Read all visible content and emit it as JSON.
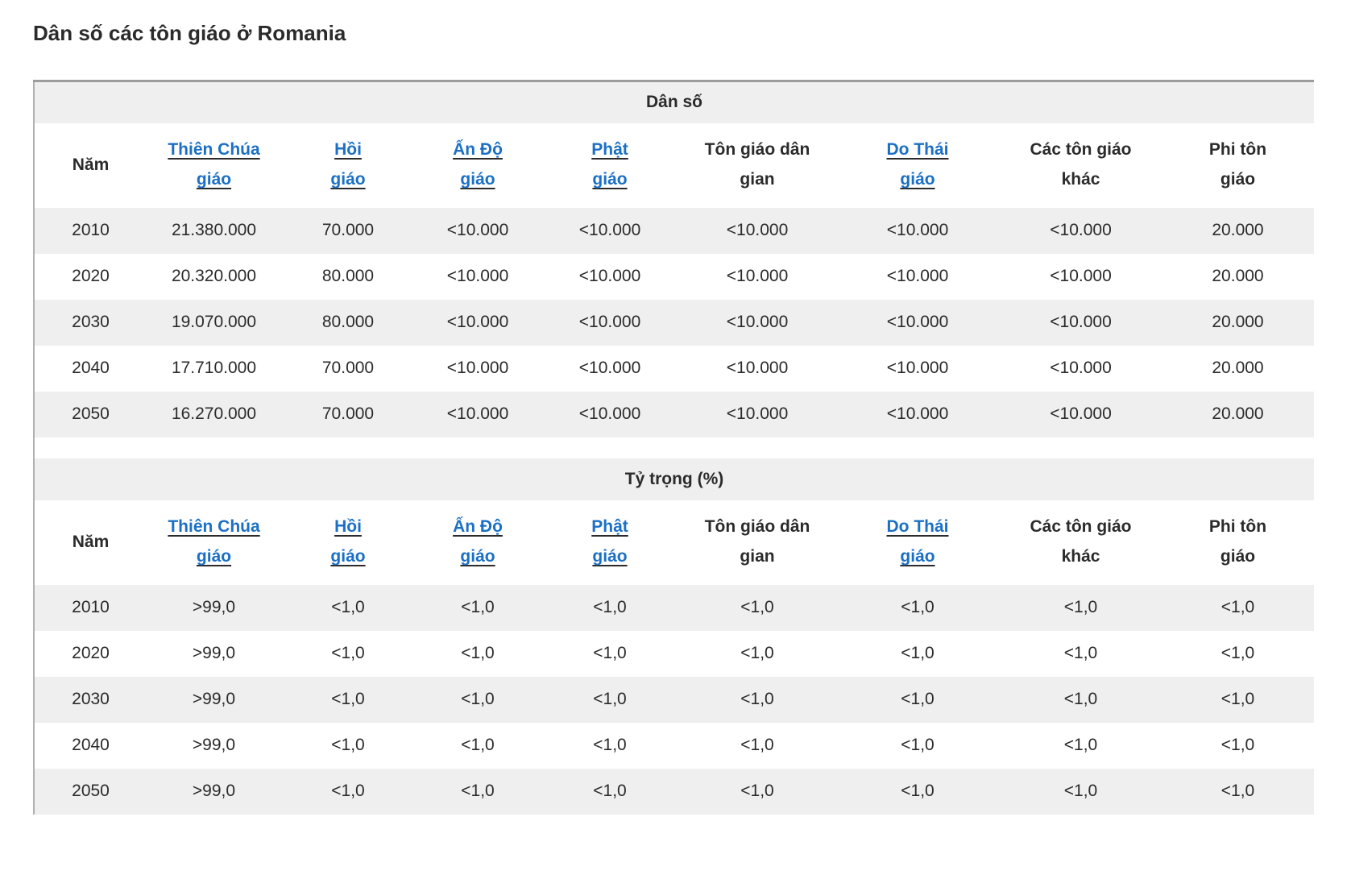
{
  "page": {
    "title": "Dân số các tôn giáo ở Romania"
  },
  "colors": {
    "link": "#1b70c5",
    "underline": "#2b2b2b",
    "text": "#2b2b2b",
    "stripe": "#efefef",
    "border_top": "#9c9c9c",
    "border_left": "#b0b0b0",
    "page_bg": "#ffffff"
  },
  "columns": [
    {
      "id": "nam",
      "label": "Năm",
      "display": "Năm",
      "link": false
    },
    {
      "id": "thien-chua-giao",
      "label": "Thiên Chúa giáo",
      "display": "Thiên Chúa\ngiáo",
      "link": true
    },
    {
      "id": "hoi-giao",
      "label": "Hồi giáo",
      "display": "Hồi\ngiáo",
      "link": true
    },
    {
      "id": "an-do-giao",
      "label": "Ấn Độ giáo",
      "display": "Ấn Độ\ngiáo",
      "link": true
    },
    {
      "id": "phat-giao",
      "label": "Phật giáo",
      "display": "Phật\ngiáo",
      "link": true
    },
    {
      "id": "ton-giao-dan-gian",
      "label": "Tôn giáo dân gian",
      "display": "Tôn giáo dân\ngian",
      "link": false
    },
    {
      "id": "do-thai-giao",
      "label": "Do Thái giáo",
      "display": "Do Thái\ngiáo",
      "link": true
    },
    {
      "id": "cac-ton-giao-khac",
      "label": "Các tôn giáo khác",
      "display": "Các tôn giáo\nkhác",
      "link": false
    },
    {
      "id": "phi-ton-giao",
      "label": "Phi tôn giáo",
      "display": "Phi tôn\ngiáo",
      "link": false
    }
  ],
  "chart_data": [
    {
      "type": "table",
      "title": "Dân số",
      "title_id": "population",
      "columns": [
        "Năm",
        "Thiên Chúa giáo",
        "Hồi giáo",
        "Ấn Độ giáo",
        "Phật giáo",
        "Tôn giáo dân gian",
        "Do Thái giáo",
        "Các tôn giáo khác",
        "Phi tôn giáo"
      ],
      "rows": [
        [
          "2010",
          "21.380.000",
          "70.000",
          "<10.000",
          "<10.000",
          "<10.000",
          "<10.000",
          "<10.000",
          "20.000"
        ],
        [
          "2020",
          "20.320.000",
          "80.000",
          "<10.000",
          "<10.000",
          "<10.000",
          "<10.000",
          "<10.000",
          "20.000"
        ],
        [
          "2030",
          "19.070.000",
          "80.000",
          "<10.000",
          "<10.000",
          "<10.000",
          "<10.000",
          "<10.000",
          "20.000"
        ],
        [
          "2040",
          "17.710.000",
          "70.000",
          "<10.000",
          "<10.000",
          "<10.000",
          "<10.000",
          "<10.000",
          "20.000"
        ],
        [
          "2050",
          "16.270.000",
          "70.000",
          "<10.000",
          "<10.000",
          "<10.000",
          "<10.000",
          "<10.000",
          "20.000"
        ]
      ]
    },
    {
      "type": "table",
      "title": "Tỷ trọng (%)",
      "title_id": "percentage",
      "columns": [
        "Năm",
        "Thiên Chúa giáo",
        "Hồi giáo",
        "Ấn Độ giáo",
        "Phật giáo",
        "Tôn giáo dân gian",
        "Do Thái giáo",
        "Các tôn giáo khác",
        "Phi tôn giáo"
      ],
      "rows": [
        [
          "2010",
          ">99,0",
          "<1,0",
          "<1,0",
          "<1,0",
          "<1,0",
          "<1,0",
          "<1,0",
          "<1,0"
        ],
        [
          "2020",
          ">99,0",
          "<1,0",
          "<1,0",
          "<1,0",
          "<1,0",
          "<1,0",
          "<1,0",
          "<1,0"
        ],
        [
          "2030",
          ">99,0",
          "<1,0",
          "<1,0",
          "<1,0",
          "<1,0",
          "<1,0",
          "<1,0",
          "<1,0"
        ],
        [
          "2040",
          ">99,0",
          "<1,0",
          "<1,0",
          "<1,0",
          "<1,0",
          "<1,0",
          "<1,0",
          "<1,0"
        ],
        [
          "2050",
          ">99,0",
          "<1,0",
          "<1,0",
          "<1,0",
          "<1,0",
          "<1,0",
          "<1,0",
          "<1,0"
        ]
      ]
    }
  ]
}
